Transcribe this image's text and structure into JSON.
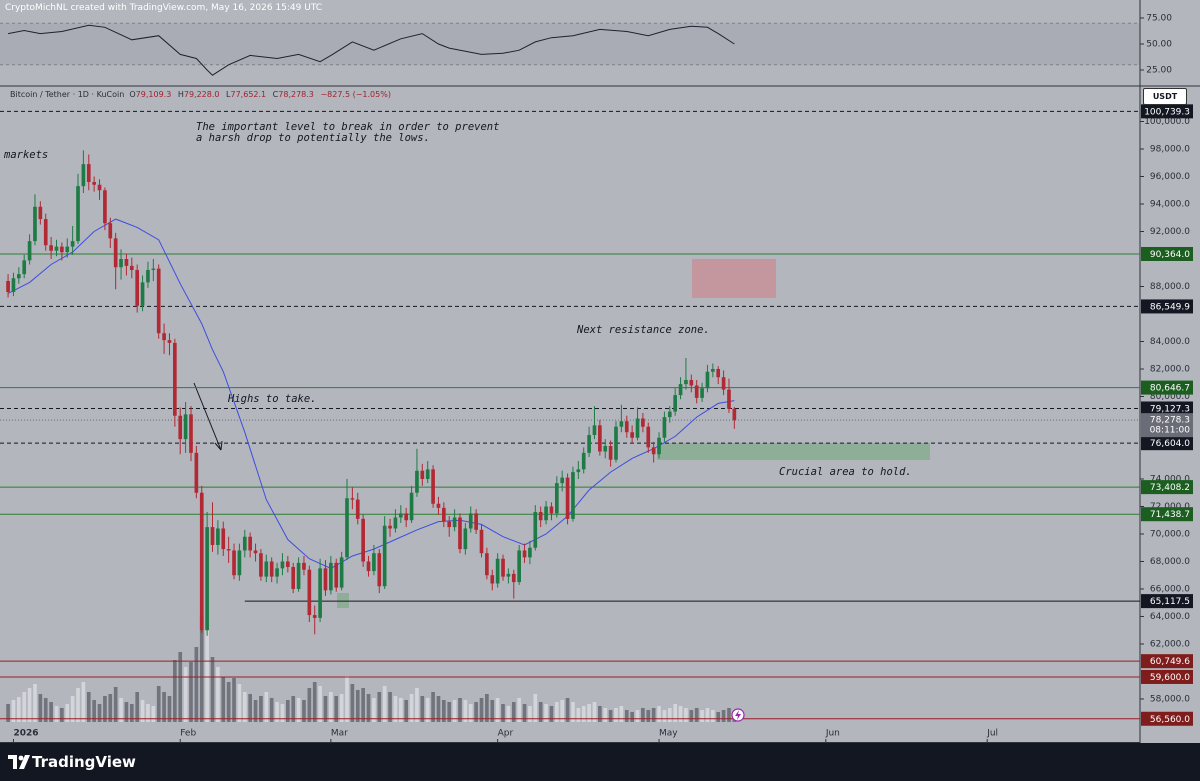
{
  "header": {
    "credit": "CryptoMichNL created with TradingView.com, May 16, 2026 15:49 UTC"
  },
  "legend": {
    "symbol": "Bitcoin / Tether · 1D · KuCoin",
    "ohlc": [
      {
        "key": "O",
        "value": "79,109.3"
      },
      {
        "key": "H",
        "value": "79,228.0"
      },
      {
        "key": "L",
        "value": "77,652.1"
      },
      {
        "key": "C",
        "value": "78,278.3"
      }
    ],
    "change": "−827.5 (−1.05%)"
  },
  "currency_button": "USDT",
  "annotations": [
    "The important level to break in order to prevent",
    "a harsh drop to potentially the lows.",
    "markets",
    "Next resistance zone.",
    "Highs to take.",
    "Crucial area to hold."
  ],
  "footer": {
    "brand": "TradingView"
  },
  "chart_data": {
    "type": "candlestick",
    "candle_colors": {
      "up": "#1e7b45",
      "down": "#b22833"
    },
    "volume_colors": {
      "up": "#d3d5da",
      "down": "#71747c"
    },
    "xlim": [
      -1.5,
      210.4
    ],
    "xticks": [
      {
        "value": 1,
        "label": "2026"
      },
      {
        "value": 32,
        "label": "Feb"
      },
      {
        "value": 60,
        "label": "Mar"
      },
      {
        "value": 91,
        "label": "Apr"
      },
      {
        "value": 121,
        "label": "May"
      },
      {
        "value": 152,
        "label": "Jun"
      },
      {
        "value": 182,
        "label": "Jul"
      }
    ],
    "ylim": [
      54870,
      102510
    ],
    "yticks": [
      {
        "value": 100000,
        "label": "100,000.0"
      },
      {
        "value": 98000,
        "label": "98,000.0"
      },
      {
        "value": 96000,
        "label": "96,000.0"
      },
      {
        "value": 94000,
        "label": "94,000.0"
      },
      {
        "value": 92000,
        "label": "92,000.0"
      },
      {
        "value": 88000,
        "label": "88,000.0"
      },
      {
        "value": 84000,
        "label": "84,000.0"
      },
      {
        "value": 82000,
        "label": "82,000.0"
      },
      {
        "value": 80000,
        "label": "80,000.0"
      },
      {
        "value": 74000,
        "label": "74,000.0"
      },
      {
        "value": 72000,
        "label": "72,000.0"
      },
      {
        "value": 70000,
        "label": "70,000.0"
      },
      {
        "value": 68000,
        "label": "68,000.0"
      },
      {
        "value": 66000,
        "label": "66,000.0"
      },
      {
        "value": 64000,
        "label": "64,000.0"
      },
      {
        "value": 62000,
        "label": "62,000.0"
      },
      {
        "value": 58000,
        "label": "58,000.0"
      }
    ],
    "ohlc": [
      [
        88400,
        88900,
        87200,
        87600
      ],
      [
        87600,
        89000,
        87300,
        88600
      ],
      [
        88600,
        89400,
        88200,
        88900
      ],
      [
        88900,
        90300,
        88600,
        89900
      ],
      [
        89900,
        91800,
        89600,
        91300
      ],
      [
        91300,
        94700,
        91000,
        93800
      ],
      [
        93800,
        94200,
        92500,
        92900
      ],
      [
        92900,
        93300,
        90600,
        91000
      ],
      [
        91000,
        91600,
        90000,
        90600
      ],
      [
        90600,
        91400,
        90200,
        90900
      ],
      [
        90900,
        91200,
        89900,
        90500
      ],
      [
        90500,
        91500,
        90100,
        90900
      ],
      [
        90900,
        92400,
        90300,
        91300
      ],
      [
        91300,
        96200,
        91100,
        95300
      ],
      [
        95300,
        97900,
        94800,
        96900
      ],
      [
        96900,
        97600,
        95000,
        95600
      ],
      [
        95600,
        96000,
        94900,
        95400
      ],
      [
        95400,
        95800,
        94300,
        95000
      ],
      [
        95000,
        95200,
        92100,
        92600
      ],
      [
        92600,
        93000,
        90800,
        91500
      ],
      [
        91500,
        91900,
        87800,
        89400
      ],
      [
        89400,
        90700,
        88500,
        90000
      ],
      [
        90000,
        90400,
        88800,
        89500
      ],
      [
        89500,
        90100,
        88600,
        89200
      ],
      [
        89200,
        89600,
        86100,
        86600
      ],
      [
        86600,
        88800,
        86200,
        88300
      ],
      [
        88300,
        89800,
        87900,
        89200
      ],
      [
        89200,
        90000,
        88400,
        89300
      ],
      [
        89300,
        89600,
        84200,
        84600
      ],
      [
        84600,
        85300,
        83100,
        84100
      ],
      [
        84100,
        84600,
        83000,
        83900
      ],
      [
        83900,
        84200,
        77800,
        78600
      ],
      [
        78600,
        79200,
        75800,
        76900
      ],
      [
        76900,
        79600,
        75900,
        78700
      ],
      [
        78700,
        79300,
        75300,
        75900
      ],
      [
        75900,
        76400,
        72600,
        73000
      ],
      [
        73000,
        73500,
        62800,
        63000
      ],
      [
        63000,
        71600,
        62600,
        70500
      ],
      [
        70500,
        72300,
        68700,
        69200
      ],
      [
        69200,
        71000,
        68500,
        70400
      ],
      [
        70400,
        70900,
        68400,
        68900
      ],
      [
        68900,
        69800,
        67900,
        68800
      ],
      [
        68800,
        69300,
        66700,
        67000
      ],
      [
        67000,
        69300,
        66600,
        68800
      ],
      [
        68800,
        70300,
        68300,
        69800
      ],
      [
        69800,
        70100,
        68300,
        68800
      ],
      [
        68800,
        69300,
        68000,
        68600
      ],
      [
        68600,
        68900,
        66600,
        66900
      ],
      [
        66900,
        68500,
        66500,
        68000
      ],
      [
        68000,
        68300,
        66500,
        66900
      ],
      [
        66900,
        67900,
        66400,
        67500
      ],
      [
        67500,
        68600,
        67000,
        68000
      ],
      [
        68000,
        68400,
        67200,
        67600
      ],
      [
        67600,
        67900,
        65700,
        66000
      ],
      [
        66000,
        68300,
        65800,
        67900
      ],
      [
        67900,
        68400,
        67000,
        67400
      ],
      [
        67400,
        67700,
        63600,
        64100
      ],
      [
        64100,
        64800,
        62700,
        63900
      ],
      [
        63900,
        68200,
        63600,
        67500
      ],
      [
        67500,
        68100,
        65500,
        65900
      ],
      [
        65900,
        68400,
        65600,
        67900
      ],
      [
        67900,
        68200,
        65800,
        66100
      ],
      [
        66100,
        68700,
        65900,
        68300
      ],
      [
        68300,
        74000,
        68100,
        72600
      ],
      [
        72600,
        73400,
        71800,
        72500
      ],
      [
        72500,
        73000,
        70700,
        71100
      ],
      [
        71100,
        71400,
        67600,
        68000
      ],
      [
        68000,
        68400,
        66900,
        67300
      ],
      [
        67300,
        69200,
        67000,
        68600
      ],
      [
        68600,
        68900,
        65700,
        66200
      ],
      [
        66200,
        71300,
        66000,
        70600
      ],
      [
        70600,
        71100,
        69800,
        70400
      ],
      [
        70400,
        71800,
        70100,
        71200
      ],
      [
        71200,
        72100,
        70800,
        71500
      ],
      [
        71500,
        71900,
        70500,
        71000
      ],
      [
        71000,
        73500,
        70800,
        73000
      ],
      [
        73000,
        76200,
        72700,
        74600
      ],
      [
        74600,
        75100,
        73500,
        74000
      ],
      [
        74000,
        75300,
        73700,
        74700
      ],
      [
        74700,
        75000,
        71900,
        72200
      ],
      [
        72200,
        72700,
        71400,
        71900
      ],
      [
        71900,
        72300,
        70500,
        70900
      ],
      [
        70900,
        71300,
        69800,
        70500
      ],
      [
        70500,
        71800,
        70200,
        71200
      ],
      [
        71200,
        71500,
        68600,
        68900
      ],
      [
        68900,
        70800,
        68500,
        70400
      ],
      [
        70400,
        72000,
        70100,
        71500
      ],
      [
        71500,
        71800,
        70000,
        70300
      ],
      [
        70300,
        70700,
        68300,
        68600
      ],
      [
        68600,
        69000,
        66700,
        67000
      ],
      [
        67000,
        67400,
        65900,
        66400
      ],
      [
        66400,
        68600,
        66100,
        68200
      ],
      [
        68200,
        68500,
        66600,
        66900
      ],
      [
        66900,
        67500,
        66400,
        67100
      ],
      [
        67100,
        67400,
        65300,
        66500
      ],
      [
        66500,
        69200,
        66300,
        68800
      ],
      [
        68800,
        69300,
        67900,
        68300
      ],
      [
        68300,
        69500,
        67800,
        69000
      ],
      [
        69000,
        72100,
        68800,
        71600
      ],
      [
        71600,
        72000,
        70500,
        71000
      ],
      [
        71000,
        72400,
        70700,
        72000
      ],
      [
        72000,
        72300,
        71000,
        71500
      ],
      [
        71500,
        74200,
        71200,
        73700
      ],
      [
        73700,
        74600,
        73100,
        74100
      ],
      [
        74100,
        74400,
        70700,
        71100
      ],
      [
        71100,
        74900,
        70900,
        74500
      ],
      [
        74500,
        75300,
        74000,
        74700
      ],
      [
        74700,
        76300,
        74400,
        75900
      ],
      [
        75900,
        77800,
        75600,
        77200
      ],
      [
        77200,
        79300,
        76900,
        77900
      ],
      [
        77900,
        78300,
        75700,
        76000
      ],
      [
        76000,
        76900,
        75500,
        76400
      ],
      [
        76400,
        76800,
        74900,
        75400
      ],
      [
        75400,
        78200,
        75200,
        77800
      ],
      [
        77800,
        79400,
        77400,
        78200
      ],
      [
        78200,
        78600,
        77000,
        77400
      ],
      [
        77400,
        77900,
        76600,
        77000
      ],
      [
        77000,
        79200,
        76800,
        78400
      ],
      [
        78400,
        78800,
        77400,
        77800
      ],
      [
        77800,
        78100,
        75900,
        76300
      ],
      [
        76300,
        76700,
        75200,
        75800
      ],
      [
        75800,
        77400,
        75500,
        77000
      ],
      [
        77000,
        78900,
        76700,
        78500
      ],
      [
        78500,
        79300,
        78100,
        78900
      ],
      [
        78900,
        80600,
        78600,
        80100
      ],
      [
        80100,
        81400,
        79800,
        80900
      ],
      [
        80900,
        82800,
        80500,
        81200
      ],
      [
        81200,
        81600,
        80300,
        80800
      ],
      [
        80800,
        81200,
        79500,
        79900
      ],
      [
        79900,
        81000,
        79600,
        80600
      ],
      [
        80600,
        82300,
        80300,
        81800
      ],
      [
        81800,
        82400,
        81400,
        82000
      ],
      [
        82000,
        82200,
        80900,
        81400
      ],
      [
        81400,
        81900,
        80100,
        80500
      ],
      [
        80500,
        81300,
        78800,
        79105.8
      ],
      [
        79109.3,
        79228.0,
        77652.1,
        78278.3
      ]
    ],
    "volume": [
      18,
      22,
      25,
      30,
      34,
      38,
      28,
      24,
      20,
      16,
      14,
      18,
      26,
      34,
      40,
      30,
      22,
      18,
      26,
      28,
      35,
      24,
      20,
      18,
      30,
      22,
      18,
      16,
      36,
      30,
      26,
      62,
      70,
      55,
      60,
      75,
      107,
      95,
      65,
      55,
      45,
      40,
      44,
      38,
      30,
      28,
      22,
      26,
      30,
      24,
      20,
      18,
      22,
      26,
      24,
      22,
      34,
      40,
      36,
      26,
      30,
      26,
      28,
      46,
      38,
      32,
      34,
      28,
      24,
      30,
      36,
      30,
      26,
      24,
      22,
      28,
      34,
      26,
      24,
      30,
      26,
      22,
      20,
      22,
      24,
      22,
      18,
      20,
      24,
      28,
      22,
      24,
      18,
      16,
      20,
      24,
      18,
      16,
      28,
      20,
      18,
      16,
      20,
      22,
      24,
      20,
      14,
      16,
      18,
      20,
      16,
      14,
      12,
      14,
      16,
      12,
      10,
      12,
      14,
      12,
      14,
      16,
      12,
      14,
      18,
      16,
      14,
      12,
      14,
      12,
      14,
      12,
      10,
      12,
      14,
      10
    ],
    "ma": {
      "color": "#3d4de0",
      "x": [
        0,
        4,
        8,
        12,
        16,
        20,
        24,
        28,
        32,
        36,
        38,
        40,
        44,
        48,
        52,
        56,
        60,
        64,
        68,
        72,
        76,
        80,
        84,
        88,
        92,
        96,
        100,
        104,
        108,
        112,
        116,
        120,
        124,
        128,
        132,
        135
      ],
      "values": [
        87500,
        88300,
        89600,
        90500,
        92000,
        92900,
        92300,
        91400,
        88200,
        85300,
        83400,
        81800,
        77400,
        72500,
        69600,
        68200,
        67500,
        68400,
        68900,
        69600,
        70300,
        70900,
        71000,
        70700,
        69800,
        69200,
        70000,
        71300,
        73200,
        74500,
        75500,
        76200,
        77100,
        78500,
        79500,
        79700
      ]
    },
    "rsi": {
      "color": "#1e222d",
      "band": [
        30,
        70
      ],
      "ylim": [
        9.6,
        92.3
      ],
      "yticks": [
        {
          "value": 75,
          "label": "75.00"
        },
        {
          "value": 50,
          "label": "50.00"
        },
        {
          "value": 25,
          "label": "25.00"
        }
      ],
      "x": [
        0,
        3,
        6,
        10,
        15,
        18,
        23,
        28,
        32,
        35,
        37,
        38,
        41,
        45,
        50,
        54,
        58,
        60,
        64,
        68,
        73,
        77,
        80,
        82,
        88,
        92,
        95,
        98,
        101,
        105,
        110,
        115,
        119,
        123,
        127,
        130,
        132,
        135
      ],
      "values": [
        60,
        63,
        60,
        62,
        68,
        66,
        54,
        58,
        40,
        36,
        25,
        20,
        30,
        39,
        36,
        40,
        33,
        39,
        52,
        44,
        55,
        60,
        50,
        46,
        40,
        41,
        44,
        52,
        56,
        58,
        64,
        62,
        58,
        64,
        67,
        66,
        60,
        50
      ]
    },
    "levels": [
      {
        "value": 100739.3,
        "label": "100,739.3",
        "style": "dashed",
        "color": "#131722",
        "tag": "#131722"
      },
      {
        "value": 90364.0,
        "label": "90,364.0",
        "style": "solid",
        "color": "#2e7d32",
        "tag": "#1b5e20"
      },
      {
        "value": 86549.9,
        "label": "86,549.9",
        "style": "dashed",
        "color": "#131722",
        "tag": "#131722"
      },
      {
        "value": 80646.7,
        "label": "80,646.7",
        "style": "solid",
        "color": "#2e7d32",
        "tag": "#1b5e20"
      },
      {
        "value": 79127.3,
        "label": "79,127.3",
        "style": "dashed",
        "color": "#131722",
        "tag": "#131722"
      },
      {
        "value": 76604.0,
        "label": "76,604.0",
        "style": "dashed",
        "color": "#131722",
        "tag": "#131722"
      },
      {
        "value": 73408.2,
        "label": "73,408.2",
        "style": "solid",
        "color": "#2e7d32",
        "tag": "#1b5e20"
      },
      {
        "value": 71438.7,
        "label": "71,438.7",
        "style": "solid",
        "color": "#2e7d32",
        "tag": "#1b5e20"
      },
      {
        "value": 65117.5,
        "label": "65,117.5",
        "style": "solid",
        "color": "#131722",
        "tag": "#131722",
        "from": 44
      },
      {
        "value": 60749.6,
        "label": "60,749.6",
        "style": "solid",
        "color": "#9c1c26",
        "tag": "#7f1d1d"
      },
      {
        "value": 59600.0,
        "label": "59,600.0",
        "style": "solid",
        "color": "#9c1c26",
        "tag": "#7f1d1d"
      },
      {
        "value": 56560.0,
        "label": "56,560.0",
        "style": "solid",
        "color": "#9c1c26",
        "tag": "#7f1d1d"
      }
    ],
    "last_price": {
      "value": 78278.3,
      "label": "78,278.3",
      "countdown": "08:11:00",
      "color": "#6a6d78"
    }
  }
}
